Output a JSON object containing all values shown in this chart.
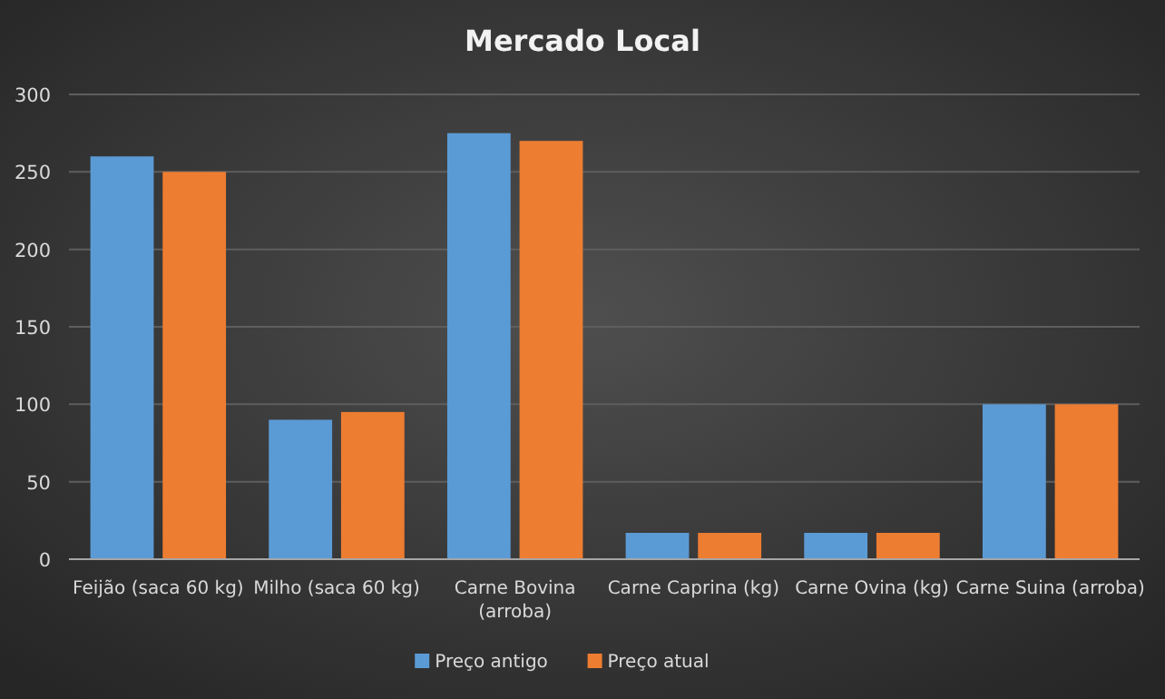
{
  "chart_data": {
    "type": "bar",
    "title": "Mercado  Local",
    "categories": [
      "Feijão (saca 60 kg)",
      "Milho (saca 60 kg)",
      "Carne Bovina (arroba)",
      "Carne Caprina (kg)",
      "Carne Ovina (kg)",
      "Carne Suina (arroba)"
    ],
    "series": [
      {
        "name": "Preço antigo",
        "color": "#5b9bd5",
        "values": [
          260,
          90,
          275,
          17,
          17,
          100
        ]
      },
      {
        "name": "Preço atual",
        "color": "#ed7d31",
        "values": [
          250,
          95,
          270,
          17,
          17,
          100
        ]
      }
    ],
    "ylim": [
      0,
      300
    ],
    "yticks": [
      0,
      50,
      100,
      150,
      200,
      250,
      300
    ],
    "grid": "y",
    "legend": "bottom"
  }
}
